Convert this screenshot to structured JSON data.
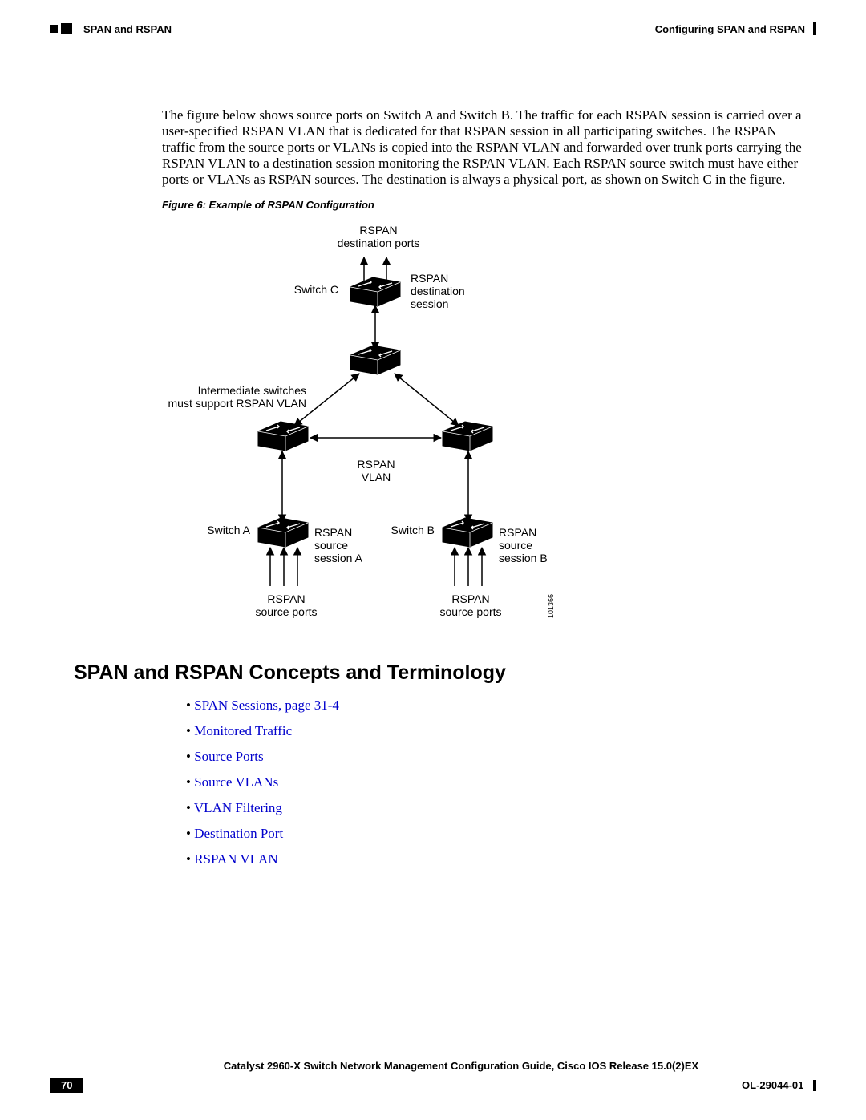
{
  "header": {
    "left_section": "SPAN and RSPAN",
    "right_chapter": "Configuring SPAN and RSPAN"
  },
  "paragraph": "The figure below shows source ports on Switch A and Switch B. The traffic for each RSPAN session is carried over a user-specified RSPAN VLAN that is dedicated for that RSPAN session in all participating switches. The RSPAN traffic from the source ports or VLANs is copied into the RSPAN VLAN and forwarded over trunk ports carrying the RSPAN VLAN to a destination session monitoring the RSPAN VLAN. Each RSPAN source switch must have either ports or VLANs as RSPAN sources. The destination is always a physical port, as shown on Switch C in the figure.",
  "figure": {
    "caption": "Figure 6: Example of RSPAN Configuration",
    "labels": {
      "dest_ports": "RSPAN\ndestination ports",
      "switch_c": "Switch C",
      "dest_session": "RSPAN\ndestination\nsession",
      "intermediate": "Intermediate switches\nmust support RSPAN VLAN",
      "rspan_vlan": "RSPAN\nVLAN",
      "switch_a": "Switch A",
      "switch_b": "Switch B",
      "src_session_a": "RSPAN\nsource\nsession A",
      "src_session_b": "RSPAN\nsource\nsession B",
      "src_ports_a": "RSPAN\nsource ports",
      "src_ports_b": "RSPAN\nsource ports",
      "id": "101366"
    },
    "style": {
      "node_fill": "#000000",
      "node_stroke": "#000000",
      "label_font": "Arial",
      "label_size_pt": 10
    }
  },
  "section_heading": "SPAN and RSPAN Concepts and Terminology",
  "links": [
    "SPAN Sessions, page 31-4",
    "Monitored Traffic",
    "Source Ports",
    "Source VLANs",
    "VLAN Filtering",
    "Destination Port",
    "RSPAN VLAN"
  ],
  "footer": {
    "book_title": "Catalyst 2960-X Switch Network Management Configuration Guide, Cisco IOS Release 15.0(2)EX",
    "page_number": "70",
    "doc_id": "OL-29044-01"
  },
  "colors": {
    "link_color": "#0000cc",
    "text_color": "#000000",
    "background": "#ffffff"
  }
}
